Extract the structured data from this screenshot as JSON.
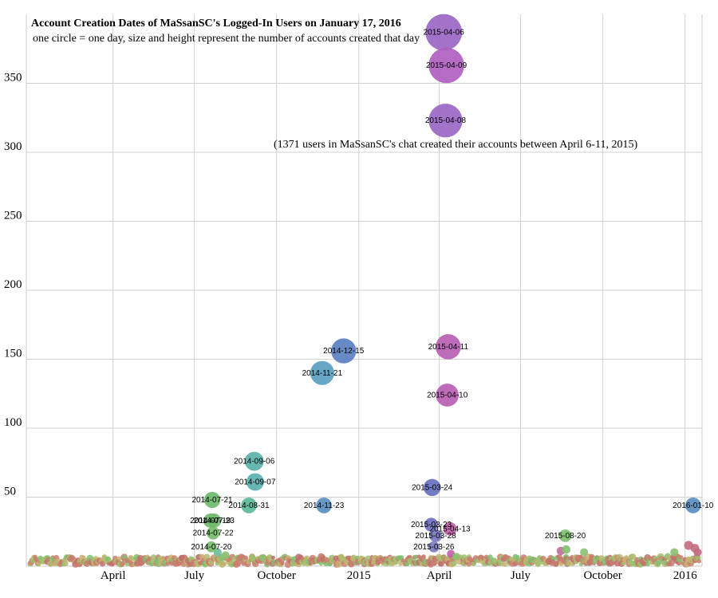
{
  "chart_data": {
    "type": "scatter",
    "title": "Account Creation Dates of MaSsanSC's Logged-In Users on January 17, 2016",
    "subtitle": "one circle = one day, size and height represent the number of accounts created that day",
    "xlabel": "",
    "ylabel": "",
    "xlim": [
      "2013-12-25",
      "2016-01-20"
    ],
    "ylim": [
      0,
      400
    ],
    "grid": true,
    "x_ticks": [
      {
        "date": "2014-04-01",
        "label": "April"
      },
      {
        "date": "2014-07-01",
        "label": "July"
      },
      {
        "date": "2014-10-01",
        "label": "October"
      },
      {
        "date": "2015-01-01",
        "label": "2015"
      },
      {
        "date": "2015-04-01",
        "label": "April"
      },
      {
        "date": "2015-07-01",
        "label": "July"
      },
      {
        "date": "2015-10-01",
        "label": "October"
      },
      {
        "date": "2016-01-01",
        "label": "2016"
      }
    ],
    "y_ticks": [
      50,
      100,
      150,
      200,
      250,
      300,
      350
    ],
    "annotation": "(1371 users in MaSsanSC's chat created their accounts between April 6-11, 2015)",
    "labeled_points": [
      {
        "date": "2015-04-06",
        "label": "2015-04-06",
        "value": 387,
        "color": "#9a67c4"
      },
      {
        "date": "2015-04-09",
        "label": "2015-04-09",
        "value": 363,
        "color": "#b060c0"
      },
      {
        "date": "2015-04-08",
        "label": "2015-04-08",
        "value": 323,
        "color": "#9a67c4"
      },
      {
        "date": "2015-04-11",
        "label": "2015-04-11",
        "value": 159,
        "color": "#b85fb4"
      },
      {
        "date": "2015-04-10",
        "label": "2015-04-10",
        "value": 124,
        "color": "#b85fb4"
      },
      {
        "date": "2014-12-15",
        "label": "2014-12-15",
        "value": 156,
        "color": "#5a7fc0"
      },
      {
        "date": "2014-11-21",
        "label": "2014-11-21",
        "value": 140,
        "color": "#5a9fc0"
      },
      {
        "date": "2014-09-06",
        "label": "2014-09-06",
        "value": 76,
        "color": "#5ab0a8"
      },
      {
        "date": "2014-09-07",
        "label": "2014-09-07",
        "value": 61,
        "color": "#5ab0b0"
      },
      {
        "date": "2014-07-21",
        "label": "2014-07-21",
        "value": 48,
        "color": "#6cba6c"
      },
      {
        "date": "2014-08-31",
        "label": "2014-08-31",
        "value": 44,
        "color": "#5ab898"
      },
      {
        "date": "2014-11-23",
        "label": "2014-11-23",
        "value": 44,
        "color": "#5a8fc0"
      },
      {
        "date": "2014-07-19",
        "label": "2014-07-19",
        "value": 33,
        "color": "#72bc6c"
      },
      {
        "date": "2014-07-23",
        "label": "2014-07-23",
        "value": 33,
        "color": "#72bc6c"
      },
      {
        "date": "2014-07-22",
        "label": "2014-07-22",
        "value": 24,
        "color": "#76bd6c"
      },
      {
        "date": "2014-07-20",
        "label": "2014-07-20",
        "value": 14,
        "color": "#7cbe6c"
      },
      {
        "date": "2015-03-24",
        "label": "2015-03-24",
        "value": 57,
        "color": "#6670c0"
      },
      {
        "date": "2015-03-23",
        "label": "2015-03-23",
        "value": 30,
        "color": "#7070c0"
      },
      {
        "date": "2015-04-13",
        "label": "2015-04-13",
        "value": 27,
        "color": "#c060a8"
      },
      {
        "date": "2015-03-28",
        "label": "2015-03-28",
        "value": 22,
        "color": "#7878c0"
      },
      {
        "date": "2015-03-26",
        "label": "2015-03-26",
        "value": 14,
        "color": "#7c7cc0"
      },
      {
        "date": "2015-08-20",
        "label": "2015-08-20",
        "value": 22,
        "color": "#7fbf70"
      },
      {
        "date": "2016-01-10",
        "label": "2016-01-10",
        "value": 44,
        "color": "#5a8fc0"
      }
    ],
    "background_points": [
      {
        "date": "2014-07-27",
        "value": 10,
        "color": "#6cba9c"
      },
      {
        "date": "2014-08-05",
        "value": 8,
        "color": "#8cc070"
      },
      {
        "date": "2014-09-15",
        "value": 6,
        "color": "#8cc070"
      },
      {
        "date": "2015-04-14",
        "value": 9,
        "color": "#c060a8"
      },
      {
        "date": "2015-04-20",
        "value": 7,
        "color": "#8cc070"
      },
      {
        "date": "2015-08-15",
        "value": 11,
        "color": "#c26a9a"
      },
      {
        "date": "2015-08-21",
        "value": 12,
        "color": "#7fbf70"
      },
      {
        "date": "2015-09-10",
        "value": 10,
        "color": "#8cc070"
      },
      {
        "date": "2015-12-20",
        "value": 10,
        "color": "#8cc070"
      },
      {
        "date": "2016-01-05",
        "value": 15,
        "color": "#c26a80"
      },
      {
        "date": "2016-01-12",
        "value": 13,
        "color": "#c26a80"
      },
      {
        "date": "2016-01-15",
        "value": 10,
        "color": "#c26a80"
      }
    ]
  }
}
